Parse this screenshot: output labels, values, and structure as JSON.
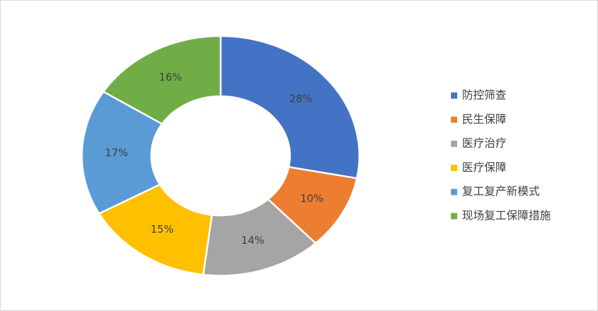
{
  "chart_data": {
    "type": "donut",
    "categories": [
      "防控筛查",
      "民生保障",
      "医疗治疗",
      "医疗保障",
      "复工复产新模式",
      "现场复工保障措施"
    ],
    "values": [
      28,
      10,
      14,
      15,
      17,
      16
    ],
    "value_labels": [
      "28%",
      "10%",
      "14%",
      "15%",
      "17%",
      "16%"
    ],
    "colors": [
      "#4472c4",
      "#ed7d31",
      "#a5a5a5",
      "#ffc000",
      "#5b9bd5",
      "#70ad47"
    ],
    "legend": "right"
  }
}
